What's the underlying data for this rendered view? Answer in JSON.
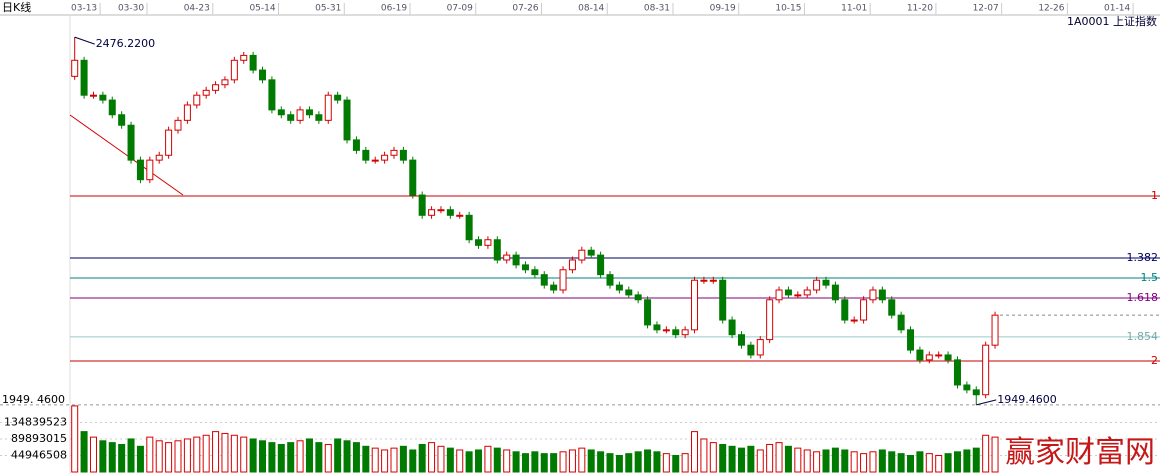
{
  "chart_data": {
    "type": "candlestick",
    "title": "日K线",
    "subtitle": "1A0001 上证指数",
    "watermark": "赢家财富网",
    "up_color": "#d40000",
    "down_color": "#007a00",
    "xlim": [
      -0.5,
      114.5
    ],
    "xticks": [
      {
        "value": 1,
        "label": "03-13"
      },
      {
        "value": 6,
        "label": "03-30"
      },
      {
        "value": 13,
        "label": "04-23"
      },
      {
        "value": 20,
        "label": "05-14"
      },
      {
        "value": 27,
        "label": "05-31"
      },
      {
        "value": 34,
        "label": "06-19"
      },
      {
        "value": 41,
        "label": "07-09"
      },
      {
        "value": 48,
        "label": "07-26"
      },
      {
        "value": 55,
        "label": "08-14"
      },
      {
        "value": 62,
        "label": "08-31"
      },
      {
        "value": 69,
        "label": "09-19"
      },
      {
        "value": 76,
        "label": "10-15"
      },
      {
        "value": 83,
        "label": "11-01"
      },
      {
        "value": 90,
        "label": "11-20"
      },
      {
        "value": 97,
        "label": "12-07"
      },
      {
        "value": 104,
        "label": "12-26"
      },
      {
        "value": 111,
        "label": "01-14"
      }
    ],
    "ylim": [
      1935,
      2505
    ],
    "low_label": {
      "value": 1949.46,
      "label": "1949. 4600"
    },
    "annotations": [
      {
        "value": 2476.22,
        "label": "2476.2200"
      },
      {
        "value": 1949.46,
        "label": "1949.4600"
      }
    ],
    "levels": [
      {
        "label": "1",
        "value": 2248.6,
        "color": "#c80000"
      },
      {
        "label": "1.382",
        "value": 2159.9,
        "color": "#000060"
      },
      {
        "label": "1.5",
        "value": 2131.2,
        "color": "#008080"
      },
      {
        "label": "1.618",
        "value": 2102.6,
        "color": "#800080"
      },
      {
        "label": "1.854",
        "value": 2046.8,
        "color": "#99cccc"
      },
      {
        "label": "2",
        "value": 2012.4,
        "color": "#c80000"
      }
    ],
    "open": [
      2420,
      2443,
      2393,
      2393,
      2386,
      2365,
      2350,
      2300,
      2272,
      2300,
      2307,
      2343,
      2357,
      2379,
      2393,
      2400,
      2408,
      2415,
      2443,
      2450,
      2429,
      2415,
      2372,
      2365,
      2357,
      2372,
      2365,
      2357,
      2393,
      2386,
      2329,
      2314,
      2300,
      2300,
      2307,
      2314,
      2300,
      2250,
      2221,
      2229,
      2229,
      2221,
      2221,
      2186,
      2178,
      2186,
      2157,
      2164,
      2150,
      2143,
      2136,
      2121,
      2114,
      2143,
      2157,
      2171,
      2164,
      2136,
      2121,
      2114,
      2107,
      2100,
      2064,
      2057,
      2057,
      2050,
      2057,
      2128,
      2128,
      2128,
      2071,
      2050,
      2035,
      2021,
      2043,
      2100,
      2114,
      2107,
      2107,
      2114,
      2128,
      2121,
      2100,
      2071,
      2071,
      2100,
      2114,
      2100,
      2078,
      2057,
      2028,
      2014,
      2021,
      2021,
      2014,
      1978,
      1971,
      1964,
      2035
    ],
    "close": [
      2443,
      2393,
      2393,
      2386,
      2365,
      2350,
      2300,
      2272,
      2300,
      2307,
      2343,
      2357,
      2379,
      2393,
      2400,
      2408,
      2415,
      2443,
      2450,
      2429,
      2415,
      2372,
      2365,
      2357,
      2372,
      2365,
      2357,
      2393,
      2386,
      2329,
      2314,
      2300,
      2300,
      2307,
      2314,
      2300,
      2250,
      2221,
      2229,
      2229,
      2221,
      2221,
      2186,
      2178,
      2186,
      2157,
      2164,
      2150,
      2143,
      2136,
      2121,
      2114,
      2143,
      2157,
      2171,
      2164,
      2136,
      2121,
      2114,
      2107,
      2100,
      2064,
      2057,
      2057,
      2050,
      2057,
      2128,
      2128,
      2128,
      2071,
      2050,
      2035,
      2021,
      2043,
      2100,
      2114,
      2107,
      2107,
      2114,
      2128,
      2121,
      2100,
      2071,
      2071,
      2100,
      2114,
      2100,
      2078,
      2057,
      2028,
      2014,
      2021,
      2021,
      2014,
      1978,
      1971,
      1964,
      2035,
      2078
    ],
    "high": [
      2476.22,
      2448,
      2398,
      2398,
      2391,
      2370,
      2355,
      2305,
      2305,
      2312,
      2348,
      2362,
      2384,
      2398,
      2405,
      2413,
      2420,
      2448,
      2455,
      2455,
      2434,
      2420,
      2377,
      2370,
      2377,
      2377,
      2370,
      2398,
      2398,
      2391,
      2334,
      2319,
      2305,
      2312,
      2319,
      2319,
      2305,
      2255,
      2234,
      2234,
      2234,
      2226,
      2226,
      2191,
      2191,
      2191,
      2169,
      2169,
      2155,
      2148,
      2141,
      2126,
      2148,
      2162,
      2176,
      2176,
      2169,
      2141,
      2126,
      2119,
      2112,
      2105,
      2069,
      2062,
      2062,
      2062,
      2133,
      2133,
      2133,
      2133,
      2076,
      2055,
      2040,
      2048,
      2105,
      2119,
      2119,
      2112,
      2119,
      2133,
      2133,
      2126,
      2105,
      2076,
      2105,
      2119,
      2119,
      2105,
      2083,
      2062,
      2033,
      2026,
      2026,
      2026,
      2019,
      1983,
      1976,
      2040,
      2083
    ],
    "low": [
      2415,
      2388,
      2388,
      2381,
      2360,
      2345,
      2295,
      2267,
      2267,
      2295,
      2302,
      2338,
      2352,
      2374,
      2388,
      2395,
      2403,
      2410,
      2438,
      2424,
      2410,
      2367,
      2360,
      2352,
      2352,
      2360,
      2352,
      2352,
      2381,
      2324,
      2309,
      2295,
      2295,
      2295,
      2302,
      2295,
      2245,
      2216,
      2216,
      2224,
      2216,
      2216,
      2181,
      2173,
      2173,
      2152,
      2152,
      2145,
      2138,
      2131,
      2116,
      2109,
      2109,
      2138,
      2152,
      2159,
      2131,
      2116,
      2109,
      2102,
      2095,
      2059,
      2052,
      2052,
      2045,
      2045,
      2052,
      2123,
      2123,
      2066,
      2045,
      2030,
      2016,
      2016,
      2038,
      2095,
      2102,
      2102,
      2102,
      2109,
      2116,
      2095,
      2066,
      2066,
      2066,
      2095,
      2095,
      2073,
      2052,
      2023,
      2009,
      2009,
      2016,
      2009,
      1973,
      1966,
      1949.46,
      1959,
      2030
    ],
    "vlim": [
      0,
      179786031
    ],
    "vticks": [
      44946508,
      89893015,
      134839523
    ],
    "volume": [
      180000000,
      110000000,
      95000000,
      85000000,
      80000000,
      75000000,
      90000000,
      70000000,
      95000000,
      85000000,
      80000000,
      85000000,
      90000000,
      95000000,
      100000000,
      110000000,
      105000000,
      100000000,
      95000000,
      90000000,
      85000000,
      80000000,
      75000000,
      80000000,
      85000000,
      90000000,
      80000000,
      75000000,
      90000000,
      85000000,
      80000000,
      70000000,
      65000000,
      60000000,
      65000000,
      70000000,
      60000000,
      75000000,
      80000000,
      70000000,
      65000000,
      60000000,
      55000000,
      60000000,
      70000000,
      65000000,
      60000000,
      55000000,
      50000000,
      55000000,
      50000000,
      50000000,
      55000000,
      60000000,
      65000000,
      60000000,
      55000000,
      50000000,
      45000000,
      50000000,
      55000000,
      60000000,
      55000000,
      50000000,
      45000000,
      50000000,
      110000000,
      90000000,
      80000000,
      75000000,
      70000000,
      65000000,
      70000000,
      60000000,
      75000000,
      80000000,
      70000000,
      65000000,
      60000000,
      55000000,
      60000000,
      65000000,
      60000000,
      55000000,
      50000000,
      55000000,
      60000000,
      55000000,
      50000000,
      45000000,
      55000000,
      50000000,
      45000000,
      50000000,
      55000000,
      60000000,
      65000000,
      100000000,
      95000000
    ]
  }
}
